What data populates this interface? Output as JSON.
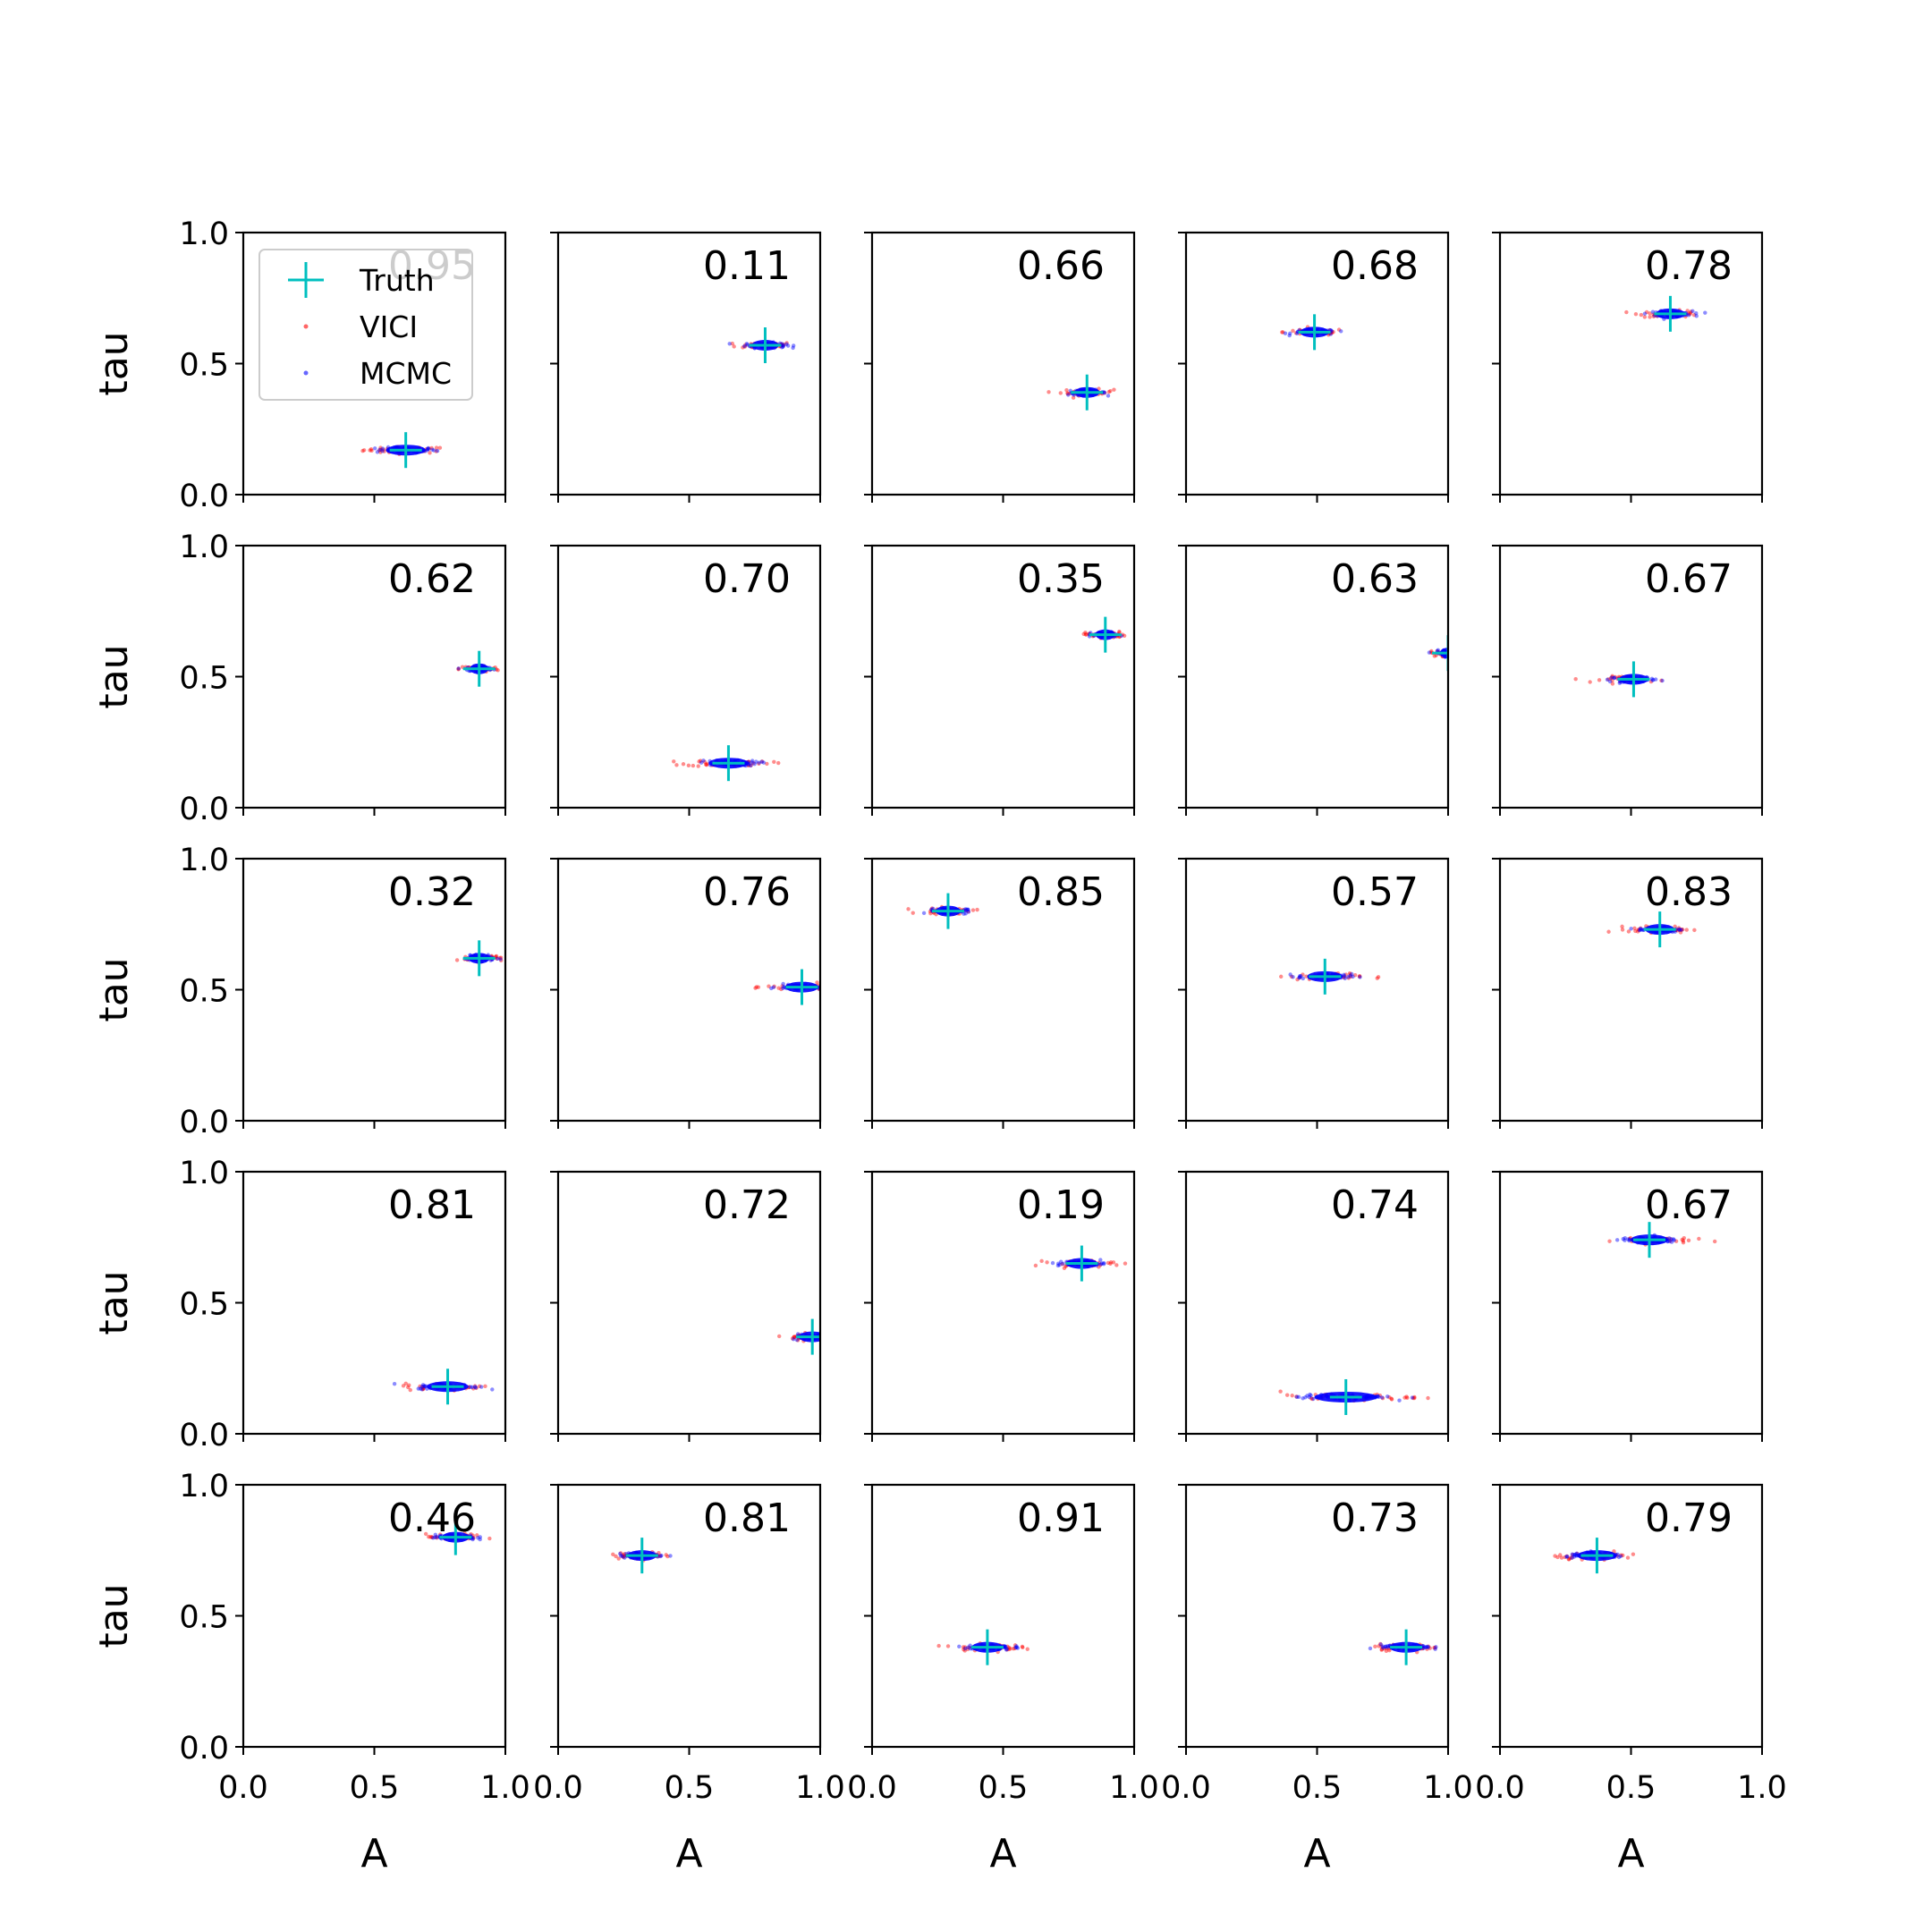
{
  "chart_data": {
    "type": "scatter",
    "grid": false,
    "xlabel": "A",
    "ylabel": "tau",
    "xlim": [
      0,
      1
    ],
    "ylim": [
      0,
      1
    ],
    "xticks": [
      "0.0",
      "0.5",
      "1.0"
    ],
    "yticks": [
      "0.0",
      "0.5",
      "1.0"
    ],
    "legend": {
      "location": "top-left of first panel",
      "entries": [
        {
          "label": "Truth",
          "marker": "plus",
          "color": "#00bfbf"
        },
        {
          "label": "VICI",
          "marker": "dot",
          "color": "#ff0000"
        },
        {
          "label": "MCMC",
          "marker": "dot",
          "color": "#0000ff"
        }
      ]
    },
    "panels": [
      {
        "label": "0.95",
        "truth": [
          0.62,
          0.17
        ],
        "spread": 0.19
      },
      {
        "label": "0.11",
        "truth": [
          0.79,
          0.57
        ],
        "spread": 0.13
      },
      {
        "label": "0.66",
        "truth": [
          0.82,
          0.39
        ],
        "spread": 0.12
      },
      {
        "label": "0.68",
        "truth": [
          0.49,
          0.62
        ],
        "spread": 0.14
      },
      {
        "label": "0.78",
        "truth": [
          0.65,
          0.69
        ],
        "spread": 0.14
      },
      {
        "label": "0.62",
        "truth": [
          0.9,
          0.53
        ],
        "spread": 0.09
      },
      {
        "label": "0.70",
        "truth": [
          0.65,
          0.17
        ],
        "spread": 0.19
      },
      {
        "label": "0.35",
        "truth": [
          0.89,
          0.66
        ],
        "spread": 0.09
      },
      {
        "label": "0.63",
        "truth": [
          1.0,
          0.59
        ],
        "spread": 0.08
      },
      {
        "label": "0.67",
        "truth": [
          0.51,
          0.49
        ],
        "spread": 0.14
      },
      {
        "label": "0.32",
        "truth": [
          0.9,
          0.62
        ],
        "spread": 0.1
      },
      {
        "label": "0.76",
        "truth": [
          0.93,
          0.51
        ],
        "spread": 0.16
      },
      {
        "label": "0.85",
        "truth": [
          0.29,
          0.8
        ],
        "spread": 0.12
      },
      {
        "label": "0.57",
        "truth": [
          0.53,
          0.55
        ],
        "spread": 0.17
      },
      {
        "label": "0.83",
        "truth": [
          0.61,
          0.73
        ],
        "spread": 0.14
      },
      {
        "label": "0.81",
        "truth": [
          0.78,
          0.18
        ],
        "spread": 0.2
      },
      {
        "label": "0.72",
        "truth": [
          0.97,
          0.37
        ],
        "spread": 0.13
      },
      {
        "label": "0.19",
        "truth": [
          0.8,
          0.65
        ],
        "spread": 0.15
      },
      {
        "label": "0.74",
        "truth": [
          0.61,
          0.14
        ],
        "spread": 0.3
      },
      {
        "label": "0.67",
        "truth": [
          0.57,
          0.74
        ],
        "spread": 0.18
      },
      {
        "label": "0.46",
        "truth": [
          0.81,
          0.8
        ],
        "spread": 0.13
      },
      {
        "label": "0.81",
        "truth": [
          0.32,
          0.73
        ],
        "spread": 0.14
      },
      {
        "label": "0.91",
        "truth": [
          0.44,
          0.38
        ],
        "spread": 0.15
      },
      {
        "label": "0.73",
        "truth": [
          0.84,
          0.38
        ],
        "spread": 0.16
      },
      {
        "label": "0.79",
        "truth": [
          0.37,
          0.73
        ],
        "spread": 0.19
      }
    ]
  }
}
